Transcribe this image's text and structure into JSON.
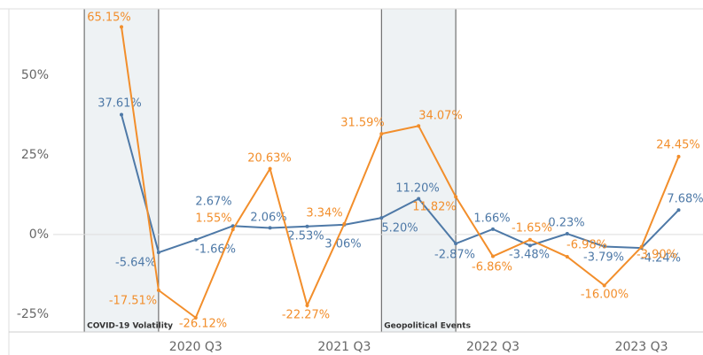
{
  "chart_data": {
    "type": "line",
    "categories": [
      null,
      null,
      "2020 Q3",
      null,
      null,
      null,
      "2021 Q3",
      null,
      null,
      null,
      "2022 Q3",
      null,
      null,
      null,
      "2023 Q3",
      null
    ],
    "series": [
      {
        "name": null,
        "color": "#4e79a7",
        "values": [
          37.61,
          -5.64,
          -1.66,
          2.67,
          2.06,
          2.53,
          3.06,
          5.2,
          11.2,
          -2.87,
          1.66,
          -3.48,
          0.23,
          -3.79,
          -4.24,
          7.68
        ],
        "value_labels": [
          "37.61%",
          "-5.64%",
          "-1.66%",
          "2.67%",
          "2.06%",
          "2.53%",
          "3.06%",
          "5.20%",
          "11.20%",
          "-2.87%",
          "1.66%",
          "-3.48%",
          "0.23%",
          "-3.79%",
          "-4.24%",
          "7.68%"
        ]
      },
      {
        "name": null,
        "color": "#f28e2b",
        "values": [
          65.15,
          -17.51,
          -26.12,
          1.55,
          20.63,
          -22.27,
          3.34,
          31.59,
          34.07,
          11.82,
          -6.86,
          -1.65,
          -6.98,
          -16.0,
          -3.9,
          24.45
        ],
        "value_labels": [
          "65.15%",
          "-17.51%",
          "-26.12%",
          "1.55%",
          "20.63%",
          "-22.27%",
          "3.34%",
          "31.59%",
          "34.07%",
          "11.82%",
          "-6.86%",
          "-1.65%",
          "-6.98%",
          "-16.00%",
          "-3.90%",
          "24.45%"
        ]
      }
    ],
    "annotations": [
      "COVID-19 Volatility",
      "Geopolitical Events"
    ],
    "ylim": [
      -30.6,
      70.8
    ],
    "yticks": [
      {
        "value": -25,
        "label": "-25%"
      },
      {
        "value": 0,
        "label": "0%"
      },
      {
        "value": 25,
        "label": "25%"
      },
      {
        "value": 50,
        "label": "50%"
      }
    ]
  }
}
